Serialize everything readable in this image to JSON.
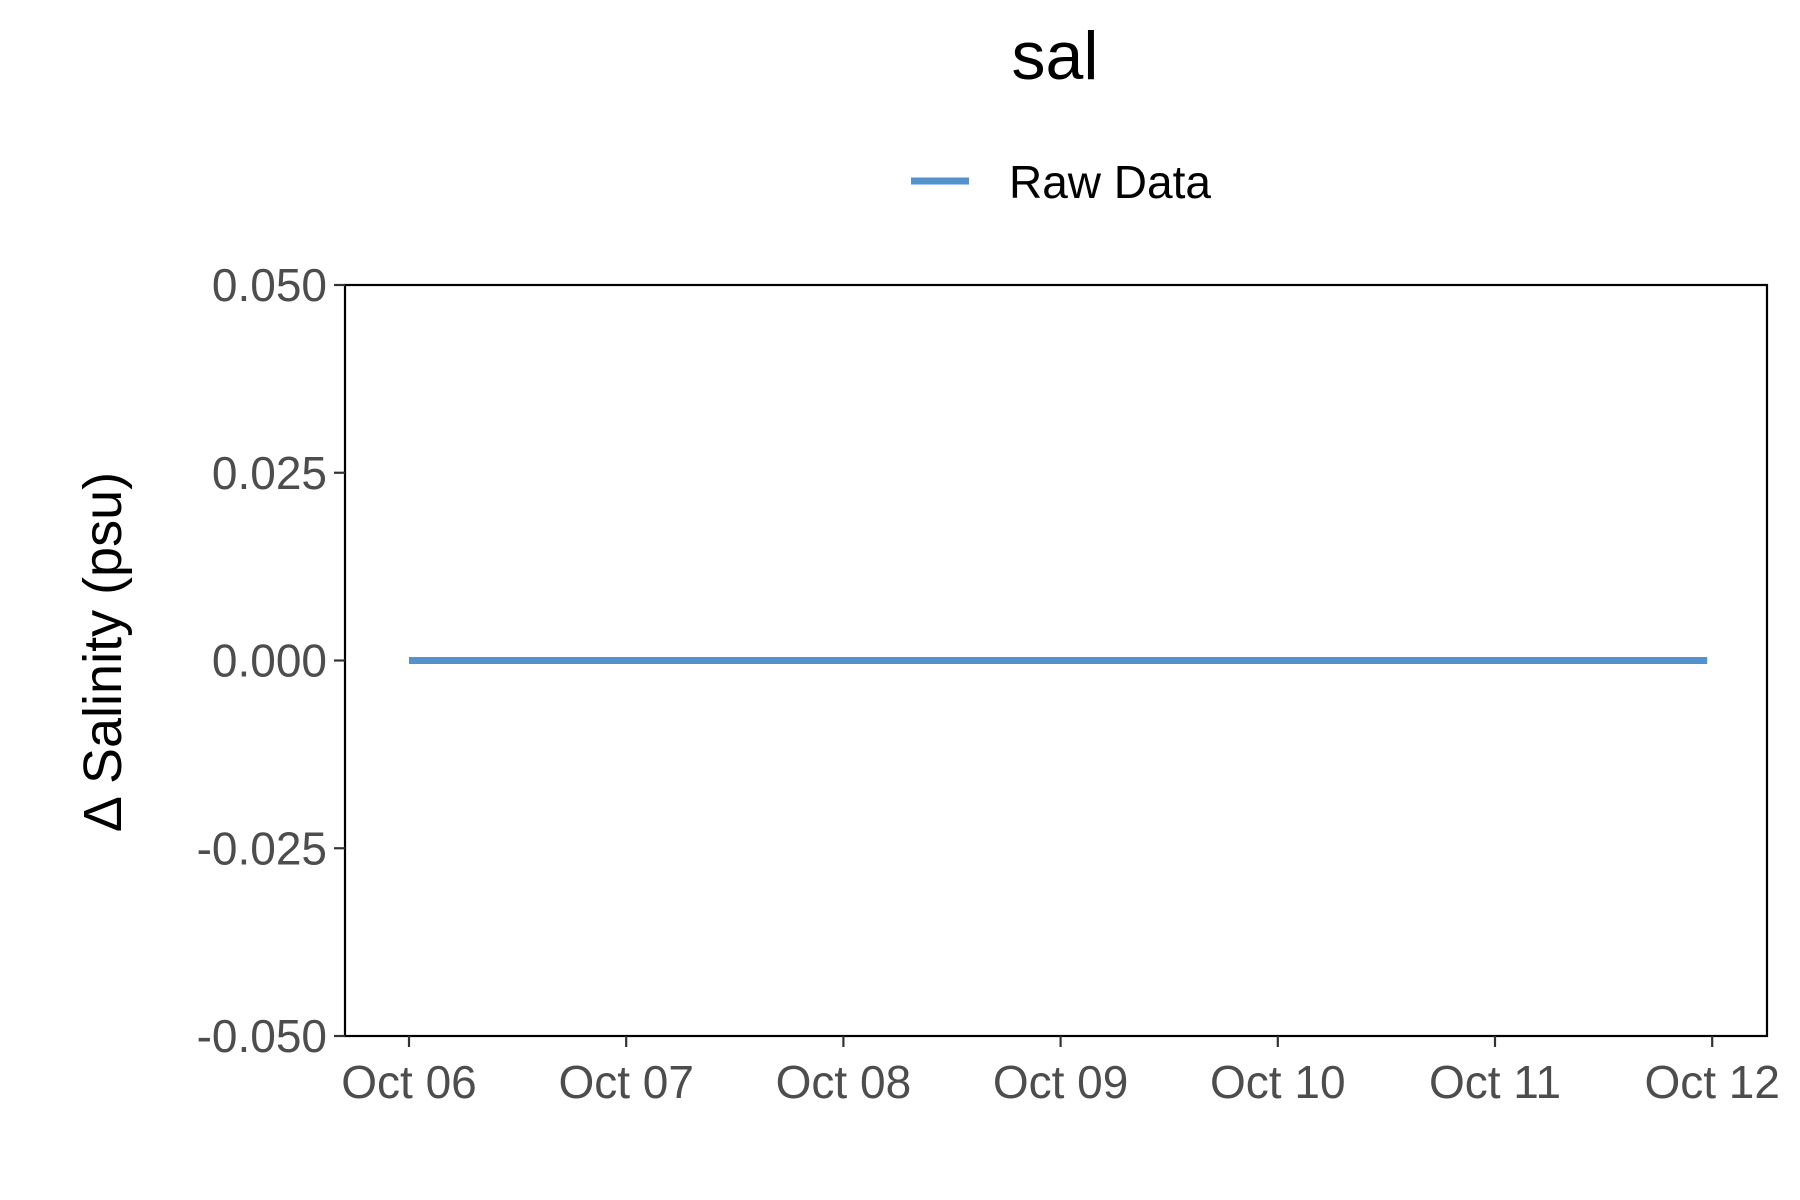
{
  "chart_data": {
    "type": "line",
    "title": "sal",
    "xlabel": "",
    "ylabel": "Δ Salinity (psu)",
    "x_ticks": [
      "Oct 06",
      "Oct 07",
      "Oct 08",
      "Oct 09",
      "Oct 10",
      "Oct 11",
      "Oct 12"
    ],
    "y_ticks": [
      "0.050",
      "0.025",
      "0.000",
      "-0.025",
      "-0.050"
    ],
    "y_tick_values": [
      0.05,
      0.025,
      0.0,
      -0.025,
      -0.05
    ],
    "xlim": [
      "Oct 05 18:00",
      "Oct 12 06:00"
    ],
    "ylim": [
      -0.05,
      0.05
    ],
    "legend_position": "top",
    "grid": false,
    "series": [
      {
        "name": "Raw Data",
        "color": "#5392cc",
        "x": [
          "Oct 06",
          "Oct 12"
        ],
        "y": [
          0.0,
          0.0
        ]
      }
    ]
  }
}
